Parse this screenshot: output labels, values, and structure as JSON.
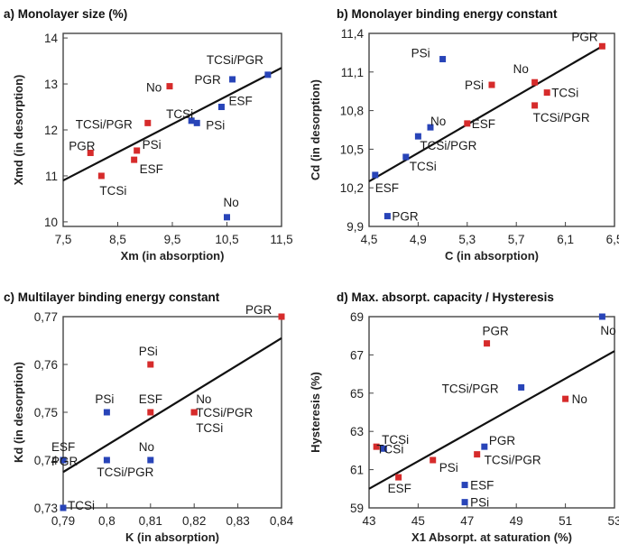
{
  "colors": {
    "treated": "#d62b2b",
    "control": "#2844b8",
    "line": "#111111",
    "frame": "#444444"
  },
  "chart_data": [
    {
      "type": "scatter",
      "title": "a) Monolayer size (%)",
      "xlabel": "Xm (in absorption)",
      "ylabel": "Xmd (in desorption)",
      "xlim": [
        7.5,
        11.5
      ],
      "ylim": [
        9.9,
        14.1
      ],
      "xticks": [
        7.5,
        8.5,
        9.5,
        10.5,
        11.5
      ],
      "yticks": [
        10,
        11,
        12,
        13,
        14
      ],
      "xtick_labels": [
        "7,5",
        "8,5",
        "9,5",
        "10,5",
        "11,5"
      ],
      "ytick_labels": [
        "10",
        "11",
        "12",
        "13",
        "14"
      ],
      "fit_line": {
        "x": [
          7.5,
          11.5
        ],
        "y": [
          10.9,
          13.35
        ]
      },
      "points": [
        {
          "label": "PGR",
          "x": 8.0,
          "y": 11.5,
          "color": "treated"
        },
        {
          "label": "TCSi",
          "x": 8.2,
          "y": 11.0,
          "color": "treated"
        },
        {
          "label": "PSi",
          "x": 8.85,
          "y": 11.55,
          "color": "treated"
        },
        {
          "label": "ESF",
          "x": 8.8,
          "y": 11.35,
          "color": "treated"
        },
        {
          "label": "TCSi/PGR",
          "x": 9.05,
          "y": 12.15,
          "color": "treated"
        },
        {
          "label": "No",
          "x": 9.45,
          "y": 12.95,
          "color": "treated"
        },
        {
          "label": "TCSi",
          "x": 9.85,
          "y": 12.2,
          "color": "control"
        },
        {
          "label": "PSi",
          "x": 9.95,
          "y": 12.15,
          "color": "control"
        },
        {
          "label": "ESF",
          "x": 10.4,
          "y": 12.5,
          "color": "control"
        },
        {
          "label": "PGR",
          "x": 10.6,
          "y": 13.1,
          "color": "control"
        },
        {
          "label": "TCSi/PGR",
          "x": 11.25,
          "y": 13.2,
          "color": "control"
        },
        {
          "label": "No",
          "x": 10.5,
          "y": 10.1,
          "color": "control"
        }
      ]
    },
    {
      "type": "scatter",
      "title": "b) Monolayer binding energy constant",
      "xlabel": "C (in absorption)",
      "ylabel": "Cd (in desorption)",
      "xlim": [
        4.5,
        6.5
      ],
      "ylim": [
        9.9,
        11.4
      ],
      "xticks": [
        4.5,
        4.9,
        5.3,
        5.7,
        6.1,
        6.5
      ],
      "yticks": [
        9.9,
        10.2,
        10.5,
        10.8,
        11.1,
        11.4
      ],
      "xtick_labels": [
        "4,5",
        "4,9",
        "5,3",
        "5,7",
        "6,1",
        "6,5"
      ],
      "ytick_labels": [
        "9,9",
        "10,2",
        "10,5",
        "10,8",
        "11,1",
        "11,4"
      ],
      "fit_line": {
        "x": [
          4.5,
          6.4
        ],
        "y": [
          10.25,
          11.3
        ]
      },
      "points": [
        {
          "label": "PGR",
          "x": 6.4,
          "y": 11.3,
          "color": "treated"
        },
        {
          "label": "PSi",
          "x": 5.5,
          "y": 11.0,
          "color": "treated"
        },
        {
          "label": "No",
          "x": 5.85,
          "y": 11.02,
          "color": "treated"
        },
        {
          "label": "TCSi",
          "x": 5.95,
          "y": 10.94,
          "color": "treated"
        },
        {
          "label": "ESF",
          "x": 5.3,
          "y": 10.7,
          "color": "treated"
        },
        {
          "label": "TCSi/PGR",
          "x": 5.85,
          "y": 10.84,
          "color": "treated"
        },
        {
          "label": "PSi",
          "x": 5.1,
          "y": 11.2,
          "color": "control"
        },
        {
          "label": "No",
          "x": 5.0,
          "y": 10.67,
          "color": "control"
        },
        {
          "label": "TCSi/PGR",
          "x": 4.9,
          "y": 10.6,
          "color": "control"
        },
        {
          "label": "TCSi",
          "x": 4.8,
          "y": 10.44,
          "color": "control"
        },
        {
          "label": "ESF",
          "x": 4.55,
          "y": 10.3,
          "color": "control"
        },
        {
          "label": "PGR",
          "x": 4.65,
          "y": 9.98,
          "color": "control"
        }
      ]
    },
    {
      "type": "scatter",
      "title": "c) Multilayer binding energy constant",
      "xlabel": "K (in absorption)",
      "ylabel": "Kd (in desorption)",
      "xlim": [
        0.79,
        0.84
      ],
      "ylim": [
        0.73,
        0.77
      ],
      "xticks": [
        0.79,
        0.8,
        0.81,
        0.82,
        0.83,
        0.84
      ],
      "yticks": [
        0.73,
        0.74,
        0.75,
        0.76,
        0.77
      ],
      "xtick_labels": [
        "0,79",
        "0,8",
        "0,81",
        "0,82",
        "0,83",
        "0,84"
      ],
      "ytick_labels": [
        "0,73",
        "0,74",
        "0,75",
        "0,76",
        "0,77"
      ],
      "fit_line": {
        "x": [
          0.79,
          0.84
        ],
        "y": [
          0.7375,
          0.7655
        ]
      },
      "points": [
        {
          "label": "PGR",
          "x": 0.84,
          "y": 0.77,
          "color": "treated"
        },
        {
          "label": "PSi",
          "x": 0.81,
          "y": 0.76,
          "color": "treated"
        },
        {
          "label": "ESF",
          "x": 0.81,
          "y": 0.75,
          "color": "treated"
        },
        {
          "label": "No",
          "x": 0.82,
          "y": 0.75,
          "color": "treated"
        },
        {
          "label": "TCSi/PGR",
          "x": 0.82,
          "y": 0.75,
          "color": "treated"
        },
        {
          "label": "TCSi",
          "x": 0.82,
          "y": 0.75,
          "color": "treated"
        },
        {
          "label": "PSi",
          "x": 0.8,
          "y": 0.75,
          "color": "control"
        },
        {
          "label": "ESF",
          "x": 0.79,
          "y": 0.74,
          "color": "control"
        },
        {
          "label": "PGR",
          "x": 0.79,
          "y": 0.74,
          "color": "control"
        },
        {
          "label": "No",
          "x": 0.81,
          "y": 0.74,
          "color": "control"
        },
        {
          "label": "TCSi/PGR",
          "x": 0.8,
          "y": 0.74,
          "color": "control"
        },
        {
          "label": "TCSi",
          "x": 0.79,
          "y": 0.73,
          "color": "control"
        }
      ]
    },
    {
      "type": "scatter",
      "title": "d) Max. absorpt. capacity / Hysteresis",
      "xlabel": "X1 Absorpt. at saturation (%)",
      "ylabel": "Hysteresis (%)",
      "xlim": [
        43,
        53
      ],
      "ylim": [
        59,
        69
      ],
      "xticks": [
        43,
        45,
        47,
        49,
        51,
        53
      ],
      "yticks": [
        59,
        61,
        63,
        65,
        67,
        69
      ],
      "xtick_labels": [
        "43",
        "45",
        "47",
        "49",
        "51",
        "53"
      ],
      "ytick_labels": [
        "59",
        "61",
        "63",
        "65",
        "67",
        "69"
      ],
      "fit_line": {
        "x": [
          43,
          53
        ],
        "y": [
          60.0,
          67.2
        ]
      },
      "points": [
        {
          "label": "PGR",
          "x": 47.8,
          "y": 67.6,
          "color": "treated"
        },
        {
          "label": "No",
          "x": 51.0,
          "y": 64.7,
          "color": "treated"
        },
        {
          "label": "TCSi",
          "x": 43.3,
          "y": 62.2,
          "color": "treated"
        },
        {
          "label": "TCSi/PGR",
          "x": 47.4,
          "y": 61.8,
          "color": "treated"
        },
        {
          "label": "PSi",
          "x": 45.6,
          "y": 61.5,
          "color": "treated"
        },
        {
          "label": "ESF",
          "x": 44.2,
          "y": 60.6,
          "color": "treated"
        },
        {
          "label": "No",
          "x": 52.5,
          "y": 69.0,
          "color": "control"
        },
        {
          "label": "TCSi/PGR",
          "x": 49.2,
          "y": 65.3,
          "color": "control"
        },
        {
          "label": "TCSi",
          "x": 43.6,
          "y": 62.1,
          "color": "control"
        },
        {
          "label": "PGR",
          "x": 47.7,
          "y": 62.2,
          "color": "control"
        },
        {
          "label": "ESF",
          "x": 46.9,
          "y": 60.2,
          "color": "control"
        },
        {
          "label": "PSi",
          "x": 46.9,
          "y": 59.3,
          "color": "control"
        }
      ]
    }
  ]
}
